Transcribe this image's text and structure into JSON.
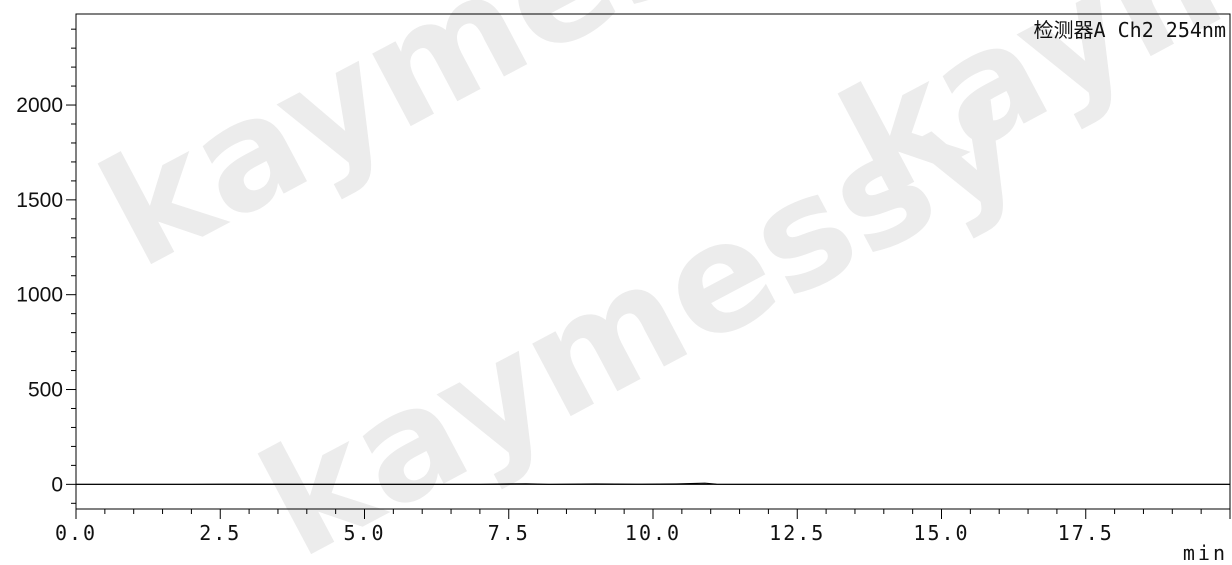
{
  "watermark": "kaymessy",
  "chart_data": {
    "type": "line",
    "title": "",
    "detector_label": "检测器A Ch2 254nm",
    "xlabel": "min",
    "ylabel": "",
    "xlim": [
      0.0,
      20.0
    ],
    "ylim": [
      -130,
      2480
    ],
    "x_ticks": [
      0.0,
      2.5,
      5.0,
      7.5,
      10.0,
      12.5,
      15.0,
      17.5
    ],
    "x_tick_labels": [
      "0.0",
      "2.5",
      "5.0",
      "7.5",
      "10.0",
      "12.5",
      "15.0",
      "17.5"
    ],
    "y_ticks": [
      0,
      500,
      1000,
      1500,
      2000
    ],
    "y_tick_labels": [
      "0",
      "500",
      "1000",
      "1500",
      "2000"
    ],
    "grid": false,
    "series": [
      {
        "name": "",
        "color": "#000000",
        "x": [
          0.0,
          2.0,
          2.5,
          5.0,
          7.0,
          7.8,
          8.2,
          9.0,
          9.8,
          10.4,
          10.9,
          11.1,
          11.5,
          12.5,
          15.0,
          17.5,
          20.0
        ],
        "y": [
          0,
          0,
          1,
          0,
          0,
          3,
          0,
          2,
          1,
          2,
          6,
          1,
          0,
          0,
          0,
          0,
          0
        ]
      }
    ]
  }
}
